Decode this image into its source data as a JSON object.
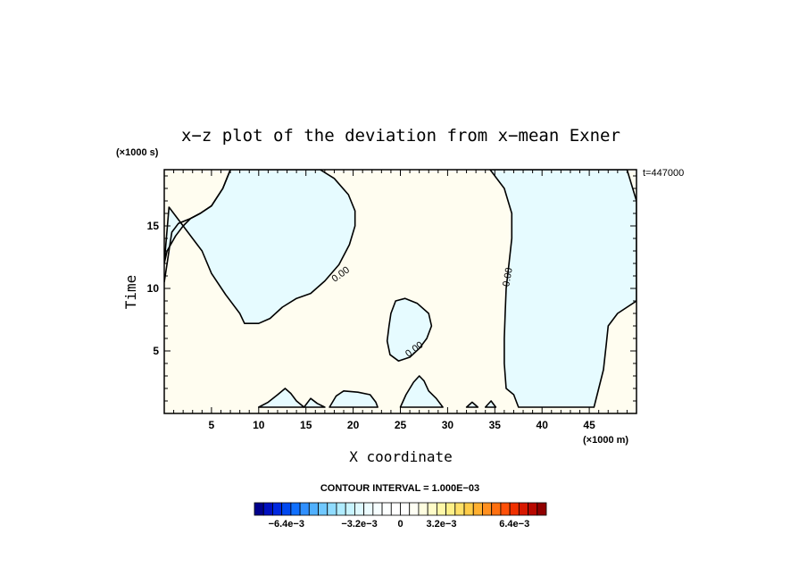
{
  "chart_data": {
    "type": "contour",
    "title": "x−z plot of the deviation from x−mean Exner",
    "xlabel": "X coordinate",
    "ylabel": "Time",
    "x_unit": "(×1000 m)",
    "y_unit": "(×1000 s)",
    "time_stamp": "t=447000",
    "contour_interval_text": "CONTOUR INTERVAL = 1.000E−03",
    "xlim": [
      0,
      50
    ],
    "ylim": [
      0,
      19.5
    ],
    "x_ticks": [
      5,
      10,
      15,
      20,
      25,
      30,
      35,
      40,
      45
    ],
    "y_ticks": [
      5,
      10,
      15
    ],
    "contour_label": "0.00",
    "colors": {
      "positive_fill": "#fffdf0",
      "negative_fill": "#e6fbff",
      "contour_line": "#000000"
    },
    "colorbar": {
      "ticks": [
        "−6.4e−3",
        "−3.2e−3",
        "0",
        "3.2e−3",
        "6.4e−3"
      ],
      "colors": [
        "#00008c",
        "#0010c0",
        "#0028e0",
        "#0048f0",
        "#1070ff",
        "#3090ff",
        "#50b0ff",
        "#70c8ff",
        "#90dcff",
        "#b0ecff",
        "#c8f4ff",
        "#def9ff",
        "#ecfcff",
        "#f6feff",
        "#fcffff",
        "#ffffff",
        "#ffffff",
        "#fffff4",
        "#fffee0",
        "#fffcc8",
        "#fff8a8",
        "#fff088",
        "#ffe068",
        "#ffcc48",
        "#ffb030",
        "#ff9020",
        "#ff7010",
        "#ff5008",
        "#f03000",
        "#d81800",
        "#b80800",
        "#900000"
      ]
    },
    "negative_regions": [
      {
        "name": "upper-left",
        "points": [
          [
            0.5,
            16.5
          ],
          [
            1.5,
            15.5
          ],
          [
            3,
            14
          ],
          [
            4,
            13
          ],
          [
            5,
            11.2
          ],
          [
            6.5,
            9.5
          ],
          [
            8,
            8
          ],
          [
            8.5,
            7.2
          ],
          [
            10,
            7.2
          ],
          [
            11.2,
            7.6
          ],
          [
            12.5,
            8.5
          ],
          [
            14,
            9.2
          ],
          [
            15.5,
            9.6
          ],
          [
            17,
            10.6
          ],
          [
            18.5,
            11.9
          ],
          [
            19.6,
            13.5
          ],
          [
            20.2,
            15.0
          ],
          [
            20.2,
            16.2
          ],
          [
            19.5,
            17.5
          ],
          [
            18,
            18.8
          ],
          [
            16.5,
            19.5
          ],
          [
            7,
            19.5
          ],
          [
            6.2,
            18
          ],
          [
            5,
            16.6
          ],
          [
            3.8,
            16
          ],
          [
            2.8,
            15.6
          ],
          [
            2,
            15
          ],
          [
            1.2,
            14.2
          ],
          [
            0.3,
            13
          ],
          [
            0,
            12
          ]
        ]
      },
      {
        "name": "middle-blob",
        "points": [
          [
            24.5,
            9.0
          ],
          [
            25.5,
            9.2
          ],
          [
            26.8,
            8.8
          ],
          [
            28,
            8.0
          ],
          [
            28.3,
            7.0
          ],
          [
            27.8,
            6.0
          ],
          [
            27,
            5.2
          ],
          [
            26,
            4.5
          ],
          [
            24.8,
            4.2
          ],
          [
            23.9,
            4.7
          ],
          [
            23.6,
            5.8
          ],
          [
            23.8,
            7.0
          ],
          [
            24,
            8.0
          ]
        ]
      },
      {
        "name": "right-band",
        "points": [
          [
            34.5,
            19.5
          ],
          [
            49,
            19.5
          ],
          [
            50,
            17
          ],
          [
            50,
            9
          ],
          [
            48,
            8
          ],
          [
            47,
            7
          ],
          [
            46.8,
            5.5
          ],
          [
            46.5,
            3.5
          ],
          [
            46,
            2
          ],
          [
            45.5,
            0.5
          ],
          [
            37.5,
            0.5
          ],
          [
            37,
            1.5
          ],
          [
            36.2,
            2
          ],
          [
            36,
            4
          ],
          [
            36,
            6
          ],
          [
            36.1,
            8
          ],
          [
            36.2,
            10
          ],
          [
            36.5,
            12
          ],
          [
            36.8,
            14
          ],
          [
            36.8,
            16
          ],
          [
            36,
            18
          ]
        ]
      },
      {
        "name": "bottom-1",
        "points": [
          [
            10,
            0.5
          ],
          [
            11,
            0.9
          ],
          [
            12,
            1.5
          ],
          [
            12.8,
            2.0
          ],
          [
            13.4,
            1.6
          ],
          [
            14,
            1.0
          ],
          [
            14.8,
            0.5
          ]
        ]
      },
      {
        "name": "bottom-2",
        "points": [
          [
            14.8,
            0.5
          ],
          [
            15.5,
            1.2
          ],
          [
            16.2,
            0.8
          ],
          [
            17,
            0.5
          ]
        ]
      },
      {
        "name": "bottom-3",
        "points": [
          [
            17.5,
            0.5
          ],
          [
            18.2,
            1.4
          ],
          [
            19,
            1.8
          ],
          [
            20.5,
            1.7
          ],
          [
            21.8,
            1.5
          ],
          [
            22.4,
            0.9
          ],
          [
            22.6,
            0.5
          ]
        ]
      },
      {
        "name": "bottom-4",
        "points": [
          [
            25,
            0.5
          ],
          [
            25.6,
            1.5
          ],
          [
            26.4,
            2.5
          ],
          [
            27,
            3.0
          ],
          [
            27.5,
            2.6
          ],
          [
            28,
            1.8
          ],
          [
            28.8,
            1.2
          ],
          [
            29.5,
            0.5
          ]
        ]
      },
      {
        "name": "bottom-5",
        "points": [
          [
            32,
            0.5
          ],
          [
            32.6,
            0.9
          ],
          [
            33.2,
            0.5
          ]
        ]
      },
      {
        "name": "bottom-6",
        "points": [
          [
            34,
            0.5
          ],
          [
            34.6,
            1.0
          ],
          [
            35.1,
            0.5
          ]
        ]
      }
    ],
    "extra_contours": [
      {
        "name": "upper-left-boundary",
        "points": [
          [
            0,
            10.5
          ],
          [
            0.3,
            12
          ],
          [
            0.6,
            13.5
          ],
          [
            0.8,
            14.5
          ],
          [
            1.5,
            15.2
          ],
          [
            2.8,
            15.6
          ],
          [
            3.8,
            16
          ],
          [
            5,
            16.6
          ],
          [
            6.2,
            18
          ],
          [
            7,
            19.5
          ]
        ]
      }
    ],
    "label_positions": [
      {
        "x": 18.7,
        "y": 11.1,
        "angle": -36
      },
      {
        "x": 26.5,
        "y": 5.1,
        "angle": -36
      },
      {
        "x": 36.4,
        "y": 10.9,
        "angle": -80
      }
    ]
  }
}
